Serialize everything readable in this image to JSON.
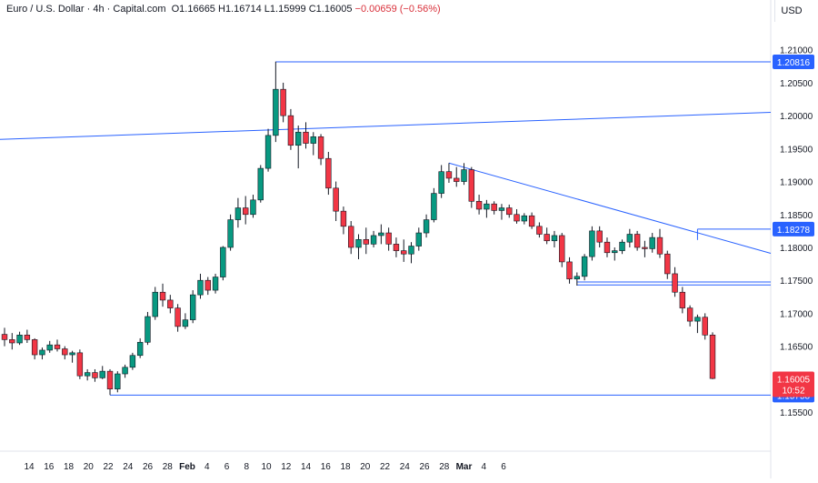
{
  "header": {
    "symbol": "Euro / U.S. Dollar",
    "interval": "4h",
    "source": "Capital.com",
    "open": "O1.16665",
    "high": "H1.16714",
    "low": "L1.15999",
    "close": "C1.16005",
    "change": "−0.00659 (−0.56%)"
  },
  "currency_label": "USD",
  "chart_data": {
    "type": "candlestick",
    "ylim": [
      1.151,
      1.213
    ],
    "grid": false,
    "y_ticks": [
      "1.21000",
      "1.20500",
      "1.20000",
      "1.19500",
      "1.19000",
      "1.18500",
      "1.18000",
      "1.17500",
      "1.17000",
      "1.16500",
      "1.16000",
      "1.15500"
    ],
    "x_ticks": [
      "14",
      "16",
      "18",
      "20",
      "22",
      "24",
      "26",
      "28",
      "Feb",
      "4",
      "6",
      "8",
      "10",
      "12",
      "14",
      "16",
      "18",
      "20",
      "22",
      "24",
      "26",
      "28",
      "Mar",
      "4",
      "6"
    ],
    "bull_color": "#089981",
    "bear_color": "#f23645",
    "line_color": "#2962ff",
    "levels": [
      {
        "value": 1.20816,
        "label": "1.20816",
        "color": "#2962ff"
      },
      {
        "value": 1.18278,
        "label": "1.18278",
        "color": "#2962ff"
      },
      {
        "value": 1.15758,
        "label": "1.15758",
        "color": "#2962ff"
      }
    ],
    "last_price": {
      "value": 1.16005,
      "label": "1.16005",
      "countdown": "10:52",
      "color": "#f23645"
    },
    "support_zone": [
      1.1743,
      1.17475
    ],
    "trendlines": [
      {
        "from": [
          "13",
          1.1964
        ],
        "to": [
          "6.2",
          1.2005
        ]
      },
      {
        "from": [
          "10.9",
          1.1928
        ],
        "to": [
          "6.2",
          1.1791
        ]
      }
    ],
    "candles": [
      [
        1.1668,
        1.1678,
        1.165,
        1.166
      ],
      [
        1.166,
        1.167,
        1.1645,
        1.1655
      ],
      [
        1.1655,
        1.1672,
        1.1652,
        1.1667
      ],
      [
        1.1667,
        1.1675,
        1.1655,
        1.166
      ],
      [
        1.166,
        1.1662,
        1.163,
        1.1637
      ],
      [
        1.1637,
        1.1648,
        1.163,
        1.1644
      ],
      [
        1.1644,
        1.1658,
        1.164,
        1.1652
      ],
      [
        1.1652,
        1.166,
        1.1642,
        1.1646
      ],
      [
        1.1646,
        1.165,
        1.163,
        1.1637
      ],
      [
        1.1637,
        1.1643,
        1.1625,
        1.164
      ],
      [
        1.164,
        1.1645,
        1.16,
        1.1605
      ],
      [
        1.1605,
        1.1615,
        1.1598,
        1.161
      ],
      [
        1.161,
        1.1615,
        1.1596,
        1.1602
      ],
      [
        1.1602,
        1.162,
        1.16,
        1.1612
      ],
      [
        1.1612,
        1.1615,
        1.1576,
        1.1585
      ],
      [
        1.1585,
        1.1612,
        1.158,
        1.1608
      ],
      [
        1.1608,
        1.1622,
        1.1602,
        1.1618
      ],
      [
        1.1618,
        1.164,
        1.1614,
        1.1636
      ],
      [
        1.1636,
        1.1662,
        1.1632,
        1.1656
      ],
      [
        1.1656,
        1.1702,
        1.1652,
        1.1695
      ],
      [
        1.1695,
        1.174,
        1.169,
        1.1732
      ],
      [
        1.1732,
        1.1745,
        1.171,
        1.172
      ],
      [
        1.172,
        1.1728,
        1.17,
        1.1708
      ],
      [
        1.1708,
        1.1714,
        1.1672,
        1.168
      ],
      [
        1.168,
        1.17,
        1.1676,
        1.169
      ],
      [
        1.169,
        1.1735,
        1.1685,
        1.1728
      ],
      [
        1.1728,
        1.176,
        1.1722,
        1.175
      ],
      [
        1.175,
        1.1755,
        1.1728,
        1.1735
      ],
      [
        1.1735,
        1.176,
        1.173,
        1.1755
      ],
      [
        1.1755,
        1.1802,
        1.175,
        1.18
      ],
      [
        1.18,
        1.185,
        1.1795,
        1.1842
      ],
      [
        1.1842,
        1.1875,
        1.183,
        1.186
      ],
      [
        1.186,
        1.1878,
        1.1835,
        1.185
      ],
      [
        1.185,
        1.188,
        1.1845,
        1.1872
      ],
      [
        1.1872,
        1.1925,
        1.1868,
        1.192
      ],
      [
        1.192,
        1.198,
        1.1915,
        1.197
      ],
      [
        1.197,
        1.2082,
        1.196,
        1.204
      ],
      [
        1.204,
        1.205,
        1.199,
        1.2
      ],
      [
        1.2,
        1.201,
        1.1948,
        1.1955
      ],
      [
        1.1955,
        1.1985,
        1.192,
        1.1975
      ],
      [
        1.1975,
        1.199,
        1.195,
        1.1958
      ],
      [
        1.1958,
        1.1975,
        1.194,
        1.1968
      ],
      [
        1.1968,
        1.1972,
        1.1925,
        1.1935
      ],
      [
        1.1935,
        1.1945,
        1.188,
        1.189
      ],
      [
        1.189,
        1.19,
        1.184,
        1.1855
      ],
      [
        1.1855,
        1.1862,
        1.182,
        1.1832
      ],
      [
        1.1832,
        1.184,
        1.179,
        1.18
      ],
      [
        1.18,
        1.182,
        1.1782,
        1.1812
      ],
      [
        1.1812,
        1.183,
        1.179,
        1.1805
      ],
      [
        1.1805,
        1.1825,
        1.18,
        1.1818
      ],
      [
        1.1818,
        1.1835,
        1.1805,
        1.1822
      ],
      [
        1.1822,
        1.183,
        1.1795,
        1.1805
      ],
      [
        1.1805,
        1.1815,
        1.1785,
        1.1795
      ],
      [
        1.1795,
        1.1812,
        1.1778,
        1.179
      ],
      [
        1.179,
        1.1808,
        1.1776,
        1.1802
      ],
      [
        1.1802,
        1.183,
        1.1795,
        1.1822
      ],
      [
        1.1822,
        1.185,
        1.1815,
        1.1842
      ],
      [
        1.1842,
        1.189,
        1.1838,
        1.1882
      ],
      [
        1.1882,
        1.1925,
        1.1875,
        1.1915
      ],
      [
        1.1915,
        1.1928,
        1.1898,
        1.1905
      ],
      [
        1.1905,
        1.1922,
        1.1892,
        1.19
      ],
      [
        1.19,
        1.1928,
        1.1895,
        1.1918
      ],
      [
        1.1918,
        1.1922,
        1.186,
        1.187
      ],
      [
        1.187,
        1.188,
        1.185,
        1.1858
      ],
      [
        1.1858,
        1.1872,
        1.1845,
        1.1866
      ],
      [
        1.1866,
        1.187,
        1.185,
        1.1856
      ],
      [
        1.1856,
        1.1866,
        1.1842,
        1.186
      ],
      [
        1.186,
        1.1865,
        1.1845,
        1.185
      ],
      [
        1.185,
        1.1858,
        1.1836,
        1.184
      ],
      [
        1.184,
        1.1852,
        1.1835,
        1.1848
      ],
      [
        1.1848,
        1.1853,
        1.1828,
        1.1832
      ],
      [
        1.1832,
        1.1838,
        1.1815,
        1.182
      ],
      [
        1.182,
        1.183,
        1.1805,
        1.181
      ],
      [
        1.181,
        1.1825,
        1.18,
        1.1818
      ],
      [
        1.1818,
        1.1822,
        1.177,
        1.1778
      ],
      [
        1.1778,
        1.1785,
        1.1745,
        1.1752
      ],
      [
        1.1752,
        1.1762,
        1.1742,
        1.1756
      ],
      [
        1.1756,
        1.179,
        1.175,
        1.1786
      ],
      [
        1.1786,
        1.1832,
        1.178,
        1.1825
      ],
      [
        1.1825,
        1.1832,
        1.18,
        1.1808
      ],
      [
        1.1808,
        1.1815,
        1.1785,
        1.1792
      ],
      [
        1.1792,
        1.18,
        1.178,
        1.1795
      ],
      [
        1.1795,
        1.1812,
        1.179,
        1.1808
      ],
      [
        1.1808,
        1.1828,
        1.18,
        1.182
      ],
      [
        1.182,
        1.1825,
        1.1795,
        1.18
      ],
      [
        1.18,
        1.181,
        1.1785,
        1.1798
      ],
      [
        1.1798,
        1.1822,
        1.1792,
        1.1815
      ],
      [
        1.1815,
        1.1828,
        1.1784,
        1.179
      ],
      [
        1.179,
        1.1795,
        1.1752,
        1.176
      ],
      [
        1.176,
        1.177,
        1.1725,
        1.1732
      ],
      [
        1.1732,
        1.174,
        1.17,
        1.1708
      ],
      [
        1.1708,
        1.1712,
        1.168,
        1.1688
      ],
      [
        1.1688,
        1.1698,
        1.167,
        1.1694
      ],
      [
        1.1694,
        1.17,
        1.166,
        1.1667
      ],
      [
        1.1667,
        1.1671,
        1.16,
        1.1601
      ]
    ]
  }
}
